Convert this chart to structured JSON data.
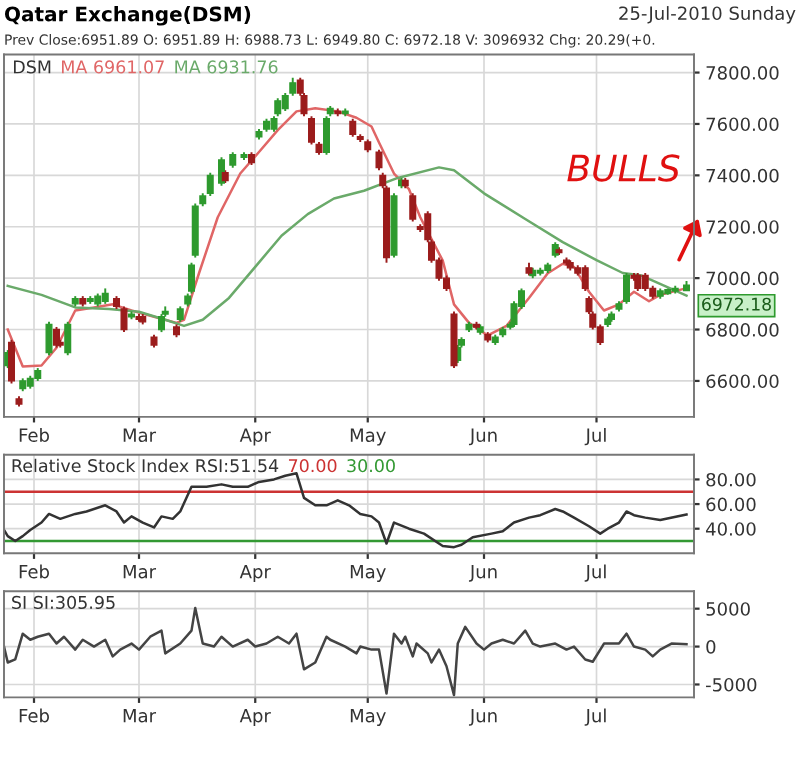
{
  "chart_data": [
    {
      "type": "candlestick",
      "title": "Qatar Exchange(DSM)",
      "subtitle": "Prev Close:6951.89 O: 6951.89 H: 6988.73 L: 6949.80 C: 6972.18 V: 3096932 Chg: 20.29(+0.",
      "annotations": [
        "25-Jul-2010 Sunday",
        "BULLS",
        "6972.18"
      ],
      "legend": "top left",
      "legend_title": "DSM",
      "grid": true,
      "xlim": [
        "2010-01-24",
        "2010-07-27"
      ],
      "xticks": [
        {
          "value": "2010-02-01",
          "label": "Feb"
        },
        {
          "value": "2010-03-01",
          "label": "Mar"
        },
        {
          "value": "2010-04-01",
          "label": "Apr"
        },
        {
          "value": "2010-05-01",
          "label": "May"
        },
        {
          "value": "2010-06-01",
          "label": "Jun"
        },
        {
          "value": "2010-07-01",
          "label": "Jul"
        }
      ],
      "ylim": [
        6460,
        7870
      ],
      "yticks": [
        {
          "value": 6600,
          "label": "6600.00"
        },
        {
          "value": 6800,
          "label": "6800.00"
        },
        {
          "value": 7000,
          "label": "7000.00"
        },
        {
          "value": 7200,
          "label": "7200.00"
        },
        {
          "value": 7400,
          "label": "7400.00"
        },
        {
          "value": 7600,
          "label": "7600.00"
        },
        {
          "value": 7800,
          "label": "7800.00"
        }
      ],
      "series": [
        {
          "type": "candlestick",
          "color": "#2e9a2e",
          "x": [
            "2010-01-25",
            "2010-01-29",
            "2010-01-31",
            "2010-02-02",
            "2010-02-05",
            "2010-02-10",
            "2010-02-12",
            "2010-02-16",
            "2010-02-18",
            "2010-02-20",
            "2010-02-27",
            "2010-03-07",
            "2010-03-08",
            "2010-03-12",
            "2010-03-14",
            "2010-03-15",
            "2010-03-16",
            "2010-03-18",
            "2010-03-20",
            "2010-03-23",
            "2010-03-26",
            "2010-03-29",
            "2010-04-02",
            "2010-04-04",
            "2010-04-06",
            "2010-04-07",
            "2010-04-09",
            "2010-04-11",
            "2010-04-20",
            "2010-04-21",
            "2010-04-25",
            "2010-05-08",
            "2010-05-10",
            "2010-05-25",
            "2010-05-26",
            "2010-05-28",
            "2010-05-31",
            "2010-06-04",
            "2010-06-06",
            "2010-06-08",
            "2010-06-09",
            "2010-06-11",
            "2010-06-14",
            "2010-06-16",
            "2010-06-18",
            "2010-06-20",
            "2010-07-04",
            "2010-07-05",
            "2010-07-07",
            "2010-07-09",
            "2010-07-18",
            "2010-07-20",
            "2010-07-22",
            "2010-07-25"
          ],
          "ohlc": [
            [
              6660,
              6720,
              6650,
              6710
            ],
            [
              6570,
              6610,
              6560,
              6600
            ],
            [
              6580,
              6620,
              6570,
              6610
            ],
            [
              6610,
              6650,
              6600,
              6640
            ],
            [
              6710,
              6830,
              6700,
              6820
            ],
            [
              6710,
              6830,
              6700,
              6820
            ],
            [
              6900,
              6930,
              6890,
              6920
            ],
            [
              6910,
              6930,
              6900,
              6920
            ],
            [
              6900,
              6940,
              6890,
              6930
            ],
            [
              6910,
              6960,
              6900,
              6940
            ],
            [
              6850,
              6870,
              6840,
              6860
            ],
            [
              6800,
              6860,
              6790,
              6850
            ],
            [
              6860,
              6890,
              6850,
              6870
            ],
            [
              6840,
              6890,
              6830,
              6880
            ],
            [
              6900,
              6940,
              6890,
              6930
            ],
            [
              6950,
              7060,
              6940,
              7050
            ],
            [
              7090,
              7290,
              7080,
              7280
            ],
            [
              7290,
              7330,
              7280,
              7320
            ],
            [
              7330,
              7410,
              7320,
              7400
            ],
            [
              7370,
              7470,
              7360,
              7460
            ],
            [
              7440,
              7490,
              7430,
              7480
            ],
            [
              7470,
              7490,
              7460,
              7480
            ],
            [
              7550,
              7580,
              7540,
              7570
            ],
            [
              7580,
              7620,
              7570,
              7610
            ],
            [
              7580,
              7630,
              7570,
              7620
            ],
            [
              7640,
              7700,
              7630,
              7690
            ],
            [
              7660,
              7720,
              7650,
              7710
            ],
            [
              7720,
              7780,
              7710,
              7760
            ],
            [
              7490,
              7630,
              7480,
              7620
            ],
            [
              7640,
              7670,
              7630,
              7660
            ],
            [
              7640,
              7660,
              7630,
              7650
            ],
            [
              7090,
              7330,
              7080,
              7320
            ],
            [
              7360,
              7390,
              7350,
              7380
            ],
            [
              6680,
              6740,
              6670,
              6730
            ],
            [
              6740,
              6770,
              6730,
              6760
            ],
            [
              6800,
              6830,
              6790,
              6820
            ],
            [
              6790,
              6820,
              6780,
              6810
            ],
            [
              6750,
              6780,
              6740,
              6770
            ],
            [
              6780,
              6810,
              6770,
              6800
            ],
            [
              6810,
              6830,
              6800,
              6820
            ],
            [
              6820,
              6910,
              6810,
              6900
            ],
            [
              6890,
              6960,
              6880,
              6950
            ],
            [
              7010,
              7040,
              7000,
              7030
            ],
            [
              7020,
              7040,
              7010,
              7030
            ],
            [
              7030,
              7060,
              7020,
              7050
            ],
            [
              7090,
              7140,
              7080,
              7130
            ],
            [
              6820,
              6850,
              6810,
              6840
            ],
            [
              6840,
              6870,
              6830,
              6860
            ],
            [
              6880,
              6910,
              6870,
              6900
            ],
            [
              6910,
              7020,
              6900,
              7010
            ],
            [
              6930,
              6960,
              6920,
              6950
            ],
            [
              6940,
              6960,
              6935,
              6955
            ],
            [
              6950,
              6970,
              6940,
              6960
            ],
            [
              6951.89,
              6988.73,
              6949.8,
              6972.18
            ]
          ]
        },
        {
          "type": "candlestick",
          "color": "#9b1c1c",
          "x": [
            "2010-01-26",
            "2010-01-28",
            "2010-02-07",
            "2010-02-08",
            "2010-02-14",
            "2010-02-23",
            "2010-02-25",
            "2010-03-01",
            "2010-03-02",
            "2010-03-05",
            "2010-03-11",
            "2010-03-24",
            "2010-03-31",
            "2010-04-13",
            "2010-04-14",
            "2010-04-16",
            "2010-04-18",
            "2010-04-23",
            "2010-04-27",
            "2010-04-29",
            "2010-05-01",
            "2010-05-04",
            "2010-05-05",
            "2010-05-06",
            "2010-05-11",
            "2010-05-13",
            "2010-05-15",
            "2010-05-17",
            "2010-05-18",
            "2010-05-20",
            "2010-05-22",
            "2010-05-24",
            "2010-05-30",
            "2010-06-02",
            "2010-06-13",
            "2010-06-21",
            "2010-06-23",
            "2010-06-24",
            "2010-06-26",
            "2010-06-28",
            "2010-06-29",
            "2010-06-30",
            "2010-07-02",
            "2010-07-11",
            "2010-07-12",
            "2010-07-14",
            "2010-07-16"
          ],
          "ohlc": [
            [
              6750,
              6760,
              6590,
              6600
            ],
            [
              6530,
              6540,
              6500,
              6510
            ],
            [
              6800,
              6810,
              6730,
              6740
            ],
            [
              6750,
              6760,
              6730,
              6740
            ],
            [
              6920,
              6930,
              6890,
              6900
            ],
            [
              6920,
              6930,
              6880,
              6890
            ],
            [
              6880,
              6890,
              6790,
              6800
            ],
            [
              6850,
              6860,
              6830,
              6840
            ],
            [
              6850,
              6860,
              6820,
              6830
            ],
            [
              6770,
              6780,
              6730,
              6740
            ],
            [
              6810,
              6820,
              6770,
              6780
            ],
            [
              7410,
              7420,
              7370,
              7380
            ],
            [
              7480,
              7490,
              7440,
              7450
            ],
            [
              7770,
              7780,
              7710,
              7720
            ],
            [
              7710,
              7720,
              7630,
              7640
            ],
            [
              7620,
              7630,
              7520,
              7530
            ],
            [
              7520,
              7530,
              7480,
              7490
            ],
            [
              7650,
              7660,
              7630,
              7640
            ],
            [
              7610,
              7620,
              7550,
              7560
            ],
            [
              7550,
              7560,
              7530,
              7540
            ],
            [
              7530,
              7540,
              7490,
              7500
            ],
            [
              7490,
              7500,
              7420,
              7430
            ],
            [
              7400,
              7410,
              7350,
              7360
            ],
            [
              7350,
              7360,
              7060,
              7080
            ],
            [
              7380,
              7390,
              7350,
              7360
            ],
            [
              7320,
              7330,
              7220,
              7230
            ],
            [
              7200,
              7210,
              7180,
              7190
            ],
            [
              7250,
              7260,
              7140,
              7150
            ],
            [
              7140,
              7150,
              7060,
              7070
            ],
            [
              7070,
              7080,
              6990,
              7000
            ],
            [
              7000,
              7010,
              6950,
              6960
            ],
            [
              6860,
              6870,
              6650,
              6660
            ],
            [
              6820,
              6830,
              6800,
              6810
            ],
            [
              6780,
              6790,
              6750,
              6760
            ],
            [
              7040,
              7060,
              7010,
              7020
            ],
            [
              7110,
              7120,
              7090,
              7100
            ],
            [
              7070,
              7080,
              7050,
              7060
            ],
            [
              7060,
              7070,
              7030,
              7040
            ],
            [
              7040,
              7050,
              7010,
              7020
            ],
            [
              7040,
              7050,
              6950,
              6960
            ],
            [
              6920,
              6930,
              6860,
              6870
            ],
            [
              6860,
              6870,
              6800,
              6810
            ],
            [
              6810,
              6820,
              6740,
              6750
            ],
            [
              7010,
              7020,
              6990,
              7000
            ],
            [
              7010,
              7020,
              6950,
              6960
            ],
            [
              7010,
              7020,
              6950,
              6960
            ],
            [
              6960,
              6970,
              6920,
              6930
            ]
          ]
        },
        {
          "type": "line",
          "name": "MA 6961.07",
          "color": "#e06666",
          "x": [
            "2010-01-25",
            "2010-01-29",
            "2010-02-03",
            "2010-02-07",
            "2010-02-12",
            "2010-02-17",
            "2010-02-22",
            "2010-02-27",
            "2010-03-05",
            "2010-03-11",
            "2010-03-13",
            "2010-03-17",
            "2010-03-22",
            "2010-03-28",
            "2010-04-02",
            "2010-04-07",
            "2010-04-12",
            "2010-04-17",
            "2010-04-23",
            "2010-04-28",
            "2010-05-02",
            "2010-05-04",
            "2010-05-08",
            "2010-05-12",
            "2010-05-15",
            "2010-05-21",
            "2010-05-24",
            "2010-05-28",
            "2010-06-02",
            "2010-06-07",
            "2010-06-13",
            "2010-06-18",
            "2010-06-22",
            "2010-06-25",
            "2010-06-29",
            "2010-07-03",
            "2010-07-07",
            "2010-07-11",
            "2010-07-15",
            "2010-07-18",
            "2010-07-25"
          ],
          "values": [
            6800,
            6656,
            6660,
            6729,
            6874,
            6886,
            6898,
            6874,
            6850,
            6826,
            6838,
            7019,
            7237,
            7407,
            7491,
            7576,
            7649,
            7661,
            7649,
            7624,
            7590,
            7528,
            7407,
            7346,
            7237,
            7068,
            6898,
            6826,
            6777,
            6814,
            6923,
            7019,
            7056,
            7044,
            6947,
            6874,
            6898,
            6947,
            6910,
            6935,
            6961
          ]
        },
        {
          "type": "line",
          "name": "MA 6931.76",
          "color": "#6aaa6a",
          "x": [
            "2010-01-25",
            "2010-02-03",
            "2010-02-12",
            "2010-02-21",
            "2010-03-01",
            "2010-03-08",
            "2010-03-13",
            "2010-03-18",
            "2010-03-25",
            "2010-04-01",
            "2010-04-08",
            "2010-04-15",
            "2010-04-22",
            "2010-04-30",
            "2010-05-09",
            "2010-05-20",
            "2010-05-24",
            "2010-06-01",
            "2010-06-12",
            "2010-06-22",
            "2010-07-01",
            "2010-07-08",
            "2010-07-13",
            "2010-07-25"
          ],
          "values": [
            6970,
            6935,
            6886,
            6880,
            6869,
            6838,
            6814,
            6838,
            6923,
            7044,
            7165,
            7249,
            7310,
            7340,
            7390,
            7431,
            7420,
            7330,
            7230,
            7140,
            7070,
            7020,
            7010,
            6932
          ]
        }
      ]
    },
    {
      "type": "line",
      "title": "Relative Stock Index RSI:51.54",
      "grid": true,
      "xlim": [
        "2010-01-24",
        "2010-07-27"
      ],
      "xticks": [
        {
          "value": "2010-02-01",
          "label": "Feb"
        },
        {
          "value": "2010-03-01",
          "label": "Mar"
        },
        {
          "value": "2010-04-01",
          "label": "Apr"
        },
        {
          "value": "2010-05-01",
          "label": "May"
        },
        {
          "value": "2010-06-01",
          "label": "Jun"
        },
        {
          "value": "2010-07-01",
          "label": "Jul"
        }
      ],
      "ylim": [
        20,
        100
      ],
      "yticks": [
        {
          "value": 40,
          "label": "40.00"
        },
        {
          "value": 60,
          "label": "60.00"
        },
        {
          "value": 80,
          "label": "80.00"
        }
      ],
      "ref_lines": [
        {
          "axis": "y",
          "value": 70,
          "label": "70.00",
          "color": "#cc3333"
        },
        {
          "axis": "y",
          "value": 30,
          "label": "30.00",
          "color": "#339933"
        }
      ],
      "series": [
        {
          "color": "#333333",
          "x": [
            "2010-01-24",
            "2010-01-25",
            "2010-01-27",
            "2010-01-29",
            "2010-01-31",
            "2010-02-03",
            "2010-02-05",
            "2010-02-08",
            "2010-02-12",
            "2010-02-15",
            "2010-02-20",
            "2010-02-23",
            "2010-02-25",
            "2010-02-27",
            "2010-03-02",
            "2010-03-05",
            "2010-03-07",
            "2010-03-10",
            "2010-03-12",
            "2010-03-15",
            "2010-03-19",
            "2010-03-23",
            "2010-03-26",
            "2010-03-30",
            "2010-04-02",
            "2010-04-06",
            "2010-04-09",
            "2010-04-12",
            "2010-04-14",
            "2010-04-17",
            "2010-04-20",
            "2010-04-23",
            "2010-04-26",
            "2010-04-29",
            "2010-05-02",
            "2010-05-04",
            "2010-05-06",
            "2010-05-08",
            "2010-05-12",
            "2010-05-16",
            "2010-05-21",
            "2010-05-24",
            "2010-05-26",
            "2010-05-29",
            "2010-06-03",
            "2010-06-06",
            "2010-06-09",
            "2010-06-13",
            "2010-06-16",
            "2010-06-20",
            "2010-06-22",
            "2010-06-25",
            "2010-06-29",
            "2010-07-02",
            "2010-07-04",
            "2010-07-07",
            "2010-07-09",
            "2010-07-11",
            "2010-07-14",
            "2010-07-18",
            "2010-07-25"
          ],
          "values": [
            39,
            34,
            30,
            34,
            39,
            45,
            52,
            48,
            52,
            54,
            59,
            54,
            45,
            50,
            45,
            41,
            50,
            48,
            54,
            74,
            74,
            76,
            74,
            74,
            78,
            80,
            83,
            85,
            65,
            59,
            59,
            63,
            59,
            52,
            50,
            45,
            28,
            45,
            40,
            36,
            26,
            25,
            27,
            33,
            36,
            38,
            45,
            49,
            51,
            56,
            54,
            49,
            42,
            36,
            40,
            45,
            54,
            51,
            49,
            47,
            51.5
          ]
        }
      ]
    },
    {
      "type": "line",
      "title": "SI SI:305.95",
      "grid": true,
      "xlim": [
        "2010-01-24",
        "2010-07-27"
      ],
      "xticks": [
        {
          "value": "2010-02-01",
          "label": "Feb"
        },
        {
          "value": "2010-03-01",
          "label": "Mar"
        },
        {
          "value": "2010-04-01",
          "label": "Apr"
        },
        {
          "value": "2010-05-01",
          "label": "May"
        },
        {
          "value": "2010-06-01",
          "label": "Jun"
        },
        {
          "value": "2010-07-01",
          "label": "Jul"
        }
      ],
      "ylim": [
        -6700,
        7300
      ],
      "yticks": [
        {
          "value": -5000,
          "label": "-5000"
        },
        0,
        5000
      ],
      "series": [
        {
          "color": "#444444",
          "x": [
            "2010-01-24",
            "2010-01-25",
            "2010-01-27",
            "2010-01-29",
            "2010-01-31",
            "2010-02-02",
            "2010-02-05",
            "2010-02-07",
            "2010-02-09",
            "2010-02-12",
            "2010-02-14",
            "2010-02-17",
            "2010-02-20",
            "2010-02-22",
            "2010-02-24",
            "2010-02-27",
            "2010-03-01",
            "2010-03-04",
            "2010-03-07",
            "2010-03-08",
            "2010-03-12",
            "2010-03-15",
            "2010-03-16",
            "2010-03-18",
            "2010-03-21",
            "2010-03-23",
            "2010-03-26",
            "2010-03-30",
            "2010-04-01",
            "2010-04-04",
            "2010-04-07",
            "2010-04-10",
            "2010-04-12",
            "2010-04-14",
            "2010-04-17",
            "2010-04-20",
            "2010-04-21",
            "2010-04-25",
            "2010-04-28",
            "2010-04-29",
            "2010-05-02",
            "2010-05-04",
            "2010-05-06",
            "2010-05-08",
            "2010-05-10",
            "2010-05-11",
            "2010-05-13",
            "2010-05-14",
            "2010-05-17",
            "2010-05-18",
            "2010-05-20",
            "2010-05-22",
            "2010-05-24",
            "2010-05-25",
            "2010-05-27",
            "2010-05-30",
            "2010-06-01",
            "2010-06-03",
            "2010-06-06",
            "2010-06-09",
            "2010-06-12",
            "2010-06-14",
            "2010-06-16",
            "2010-06-20",
            "2010-06-23",
            "2010-06-25",
            "2010-06-28",
            "2010-06-30",
            "2010-07-03",
            "2010-07-07",
            "2010-07-09",
            "2010-07-11",
            "2010-07-14",
            "2010-07-16",
            "2010-07-18",
            "2010-07-21",
            "2010-07-25"
          ],
          "values": [
            0,
            -2100,
            -1700,
            1700,
            900,
            1300,
            1700,
            400,
            1300,
            -400,
            900,
            0,
            900,
            -1300,
            -400,
            400,
            -400,
            1300,
            2100,
            -900,
            400,
            2100,
            5100,
            400,
            0,
            1300,
            0,
            900,
            0,
            400,
            1300,
            400,
            1700,
            -3000,
            -2100,
            1300,
            900,
            0,
            -900,
            0,
            -400,
            -400,
            -6200,
            1700,
            400,
            1300,
            -1300,
            400,
            -900,
            -2100,
            -400,
            -2600,
            -6400,
            400,
            2600,
            400,
            -400,
            400,
            900,
            400,
            2100,
            400,
            0,
            400,
            -400,
            0,
            -1700,
            -2000,
            400,
            400,
            1700,
            0,
            -400,
            -1300,
            -400,
            400,
            306
          ]
        }
      ]
    }
  ]
}
